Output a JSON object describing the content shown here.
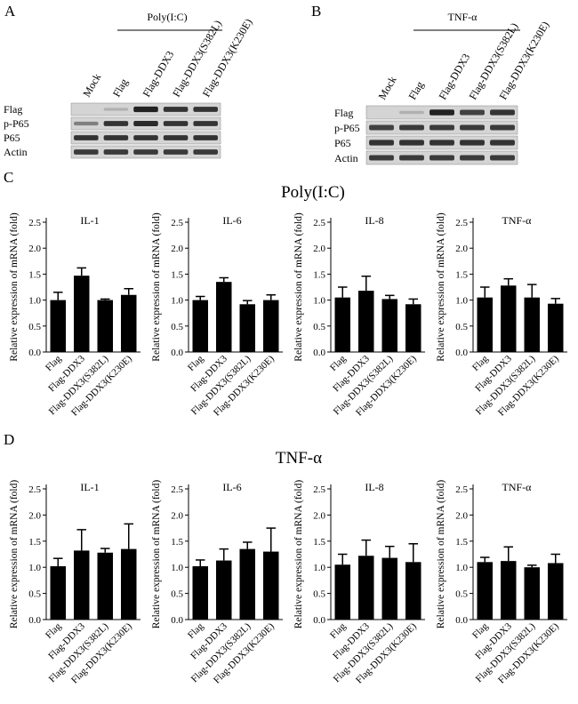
{
  "panels": {
    "A": {
      "letter": "A",
      "treatment": "Poly(I:C)",
      "lanes": [
        "Mock",
        "Flag",
        "Flag-DDX3",
        "Flag-DDX3(S382L)",
        "Flag-DDX3(K230E)"
      ],
      "rows": [
        "Flag",
        "p-P65",
        "P65",
        "Actin"
      ]
    },
    "B": {
      "letter": "B",
      "treatment": "TNF-α",
      "lanes": [
        "Mock",
        "Flag",
        "Flag-DDX3",
        "Flag-DDX3(S382L)",
        "Flag-DDX3(K230E)"
      ],
      "rows": [
        "Flag",
        "p-P65",
        "P65",
        "Actin"
      ]
    },
    "C": {
      "letter": "C",
      "title": "Poly(I:C)"
    },
    "D": {
      "letter": "D",
      "title": "TNF-α"
    }
  },
  "chart_data": [
    {
      "type": "bar",
      "group": "C",
      "title": "IL-1",
      "ylabel": "Relative expression of mRNA (fold)",
      "categories": [
        "Flag",
        "Flag-DDX3",
        "Flag-DDX3(S382L)",
        "Flag-DDX3(K230E)"
      ],
      "values": [
        1.0,
        1.47,
        1.0,
        1.1
      ],
      "errors": [
        0.15,
        0.15,
        0.02,
        0.12
      ],
      "ylim": [
        0,
        2.5
      ],
      "yticks": [
        "0.0",
        "0.5",
        "1.0",
        "1.5",
        "2.0",
        "2.5"
      ]
    },
    {
      "type": "bar",
      "group": "C",
      "title": "IL-6",
      "ylabel": "Relative expression of mRNA (fold)",
      "categories": [
        "Flag",
        "Flag-DDX3",
        "Flag-DDX3(S382L)",
        "Flag-DDX3(K230E)"
      ],
      "values": [
        1.0,
        1.35,
        0.92,
        1.0
      ],
      "errors": [
        0.07,
        0.08,
        0.07,
        0.1
      ],
      "ylim": [
        0,
        2.5
      ],
      "yticks": [
        "0.0",
        "0.5",
        "1.0",
        "1.5",
        "2.0",
        "2.5"
      ]
    },
    {
      "type": "bar",
      "group": "C",
      "title": "IL-8",
      "ylabel": "Relative expression of mRNA (fold)",
      "categories": [
        "Flag",
        "Flag-DDX3",
        "Flag-DDX3(S382L)",
        "Flag-DDX3(K230E)"
      ],
      "values": [
        1.05,
        1.18,
        1.02,
        0.92
      ],
      "errors": [
        0.2,
        0.28,
        0.07,
        0.1
      ],
      "ylim": [
        0,
        2.5
      ],
      "yticks": [
        "0.0",
        "0.5",
        "1.0",
        "1.5",
        "2.0",
        "2.5"
      ]
    },
    {
      "type": "bar",
      "group": "C",
      "title": "TNF-α",
      "ylabel": "Relative expression of mRNA (fold)",
      "categories": [
        "Flag",
        "Flag-DDX3",
        "Flag-DDX3(S382L)",
        "Flag-DDX3(K230E)"
      ],
      "values": [
        1.05,
        1.28,
        1.05,
        0.93
      ],
      "errors": [
        0.2,
        0.13,
        0.25,
        0.1
      ],
      "ylim": [
        0,
        2.5
      ],
      "yticks": [
        "0.0",
        "0.5",
        "1.0",
        "1.5",
        "2.0",
        "2.5"
      ]
    },
    {
      "type": "bar",
      "group": "D",
      "title": "IL-1",
      "ylabel": "Relative expression of mRNA (fold)",
      "categories": [
        "Flag",
        "Flag-DDX3",
        "Flag-DDX3(S382L)",
        "Flag-DDX3(K230E)"
      ],
      "values": [
        1.02,
        1.32,
        1.28,
        1.35
      ],
      "errors": [
        0.15,
        0.4,
        0.08,
        0.48
      ],
      "ylim": [
        0,
        2.5
      ],
      "yticks": [
        "0.0",
        "0.5",
        "1.0",
        "1.5",
        "2.0",
        "2.5"
      ]
    },
    {
      "type": "bar",
      "group": "D",
      "title": "IL-6",
      "ylabel": "Relative expression of mRNA (fold)",
      "categories": [
        "Flag",
        "Flag-DDX3",
        "Flag-DDX3(S382L)",
        "Flag-DDX3(K230E)"
      ],
      "values": [
        1.02,
        1.13,
        1.35,
        1.3
      ],
      "errors": [
        0.12,
        0.22,
        0.13,
        0.45
      ],
      "ylim": [
        0,
        2.5
      ],
      "yticks": [
        "0.0",
        "0.5",
        "1.0",
        "1.5",
        "2.0",
        "2.5"
      ]
    },
    {
      "type": "bar",
      "group": "D",
      "title": "IL-8",
      "ylabel": "Relative expression of mRNA (fold)",
      "categories": [
        "Flag",
        "Flag-DDX3",
        "Flag-DDX3(S382L)",
        "Flag-DDX3(K230E)"
      ],
      "values": [
        1.05,
        1.22,
        1.18,
        1.1
      ],
      "errors": [
        0.2,
        0.3,
        0.22,
        0.35
      ],
      "ylim": [
        0,
        2.5
      ],
      "yticks": [
        "0.0",
        "0.5",
        "1.0",
        "1.5",
        "2.0",
        "2.5"
      ]
    },
    {
      "type": "bar",
      "group": "D",
      "title": "TNF-α",
      "ylabel": "Relative expression of mRNA (fold)",
      "categories": [
        "Flag",
        "Flag-DDX3",
        "Flag-DDX3(S382L)",
        "Flag-DDX3(K230E)"
      ],
      "values": [
        1.1,
        1.12,
        1.0,
        1.08
      ],
      "errors": [
        0.09,
        0.27,
        0.04,
        0.17
      ],
      "ylim": [
        0,
        2.5
      ],
      "yticks": [
        "0.0",
        "0.5",
        "1.0",
        "1.5",
        "2.0",
        "2.5"
      ]
    }
  ],
  "blot_data": {
    "A": {
      "Flag": [
        0.0,
        0.05,
        0.95,
        0.85,
        0.85
      ],
      "p-P65": [
        0.35,
        0.85,
        0.9,
        0.85,
        0.85
      ],
      "P65": [
        0.85,
        0.85,
        0.85,
        0.85,
        0.85
      ],
      "Actin": [
        0.8,
        0.8,
        0.8,
        0.8,
        0.8
      ]
    },
    "B": {
      "Flag": [
        0.0,
        0.05,
        0.95,
        0.75,
        0.85
      ],
      "p-P65": [
        0.75,
        0.8,
        0.8,
        0.8,
        0.8
      ],
      "P65": [
        0.85,
        0.85,
        0.85,
        0.85,
        0.85
      ],
      "Actin": [
        0.8,
        0.8,
        0.8,
        0.8,
        0.8
      ]
    }
  },
  "colors": {
    "bar": "#000000",
    "axis": "#000000",
    "blot_bg": "#d4d4d4",
    "band": "#1a1a1a"
  }
}
